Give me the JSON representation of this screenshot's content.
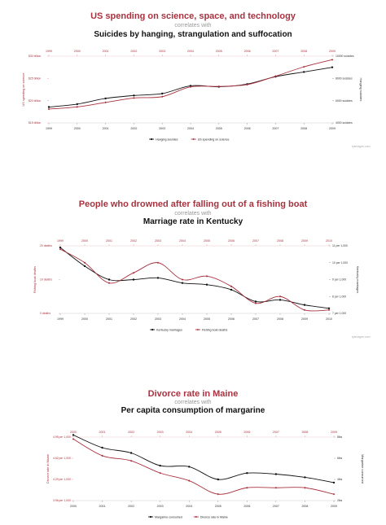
{
  "chart_data": [
    {
      "type": "line",
      "title": "US spending on science, space, and technology",
      "correlates_label": "correlates with",
      "subtitle": "Suicides by hanging, strangulation and suffocation",
      "x": [
        "1999",
        "2000",
        "2001",
        "2002",
        "2003",
        "2004",
        "2005",
        "2006",
        "2007",
        "2008",
        "2009"
      ],
      "left_axis": {
        "label": "US spending on science",
        "ticks": [
          "$15 billion",
          "$20 billion",
          "$25 billion",
          "$30 billion"
        ],
        "range": [
          15,
          30
        ]
      },
      "right_axis": {
        "label": "Hanging suicides",
        "ticks": [
          "4000 suicides",
          "6000 suicides",
          "8000 suicides",
          "10000 suicides"
        ],
        "range": [
          4000,
          10000
        ]
      },
      "series": [
        {
          "name": "Hanging suicides",
          "axis": "right",
          "color": "#111111",
          "marker": "dot",
          "values": [
            5427,
            5688,
            6198,
            6462,
            6635,
            7336,
            7248,
            7491,
            8161,
            8578,
            9000
          ]
        },
        {
          "name": "US spending on science",
          "axis": "left",
          "color": "#a8323f",
          "marker": "diamond",
          "values": [
            18.1,
            18.6,
            19.6,
            20.6,
            20.9,
            23.1,
            23.2,
            23.6,
            25.5,
            27.6,
            29.2
          ]
        }
      ],
      "legend_position": "bottom",
      "credit": "tylervigen.com"
    },
    {
      "type": "line",
      "title": "People who drowned after falling out of a fishing boat",
      "correlates_label": "correlates with",
      "subtitle": "Marriage rate in Kentucky",
      "x": [
        "1999",
        "2000",
        "2001",
        "2002",
        "2003",
        "2004",
        "2005",
        "2006",
        "2007",
        "2008",
        "2009",
        "2010"
      ],
      "left_axis": {
        "label": "Fishing boat deaths",
        "ticks": [
          "0 deaths",
          "10 deaths",
          "20 deaths"
        ],
        "range": [
          0,
          20
        ]
      },
      "right_axis": {
        "label": "Kentucky marriages",
        "ticks": [
          "7 per 1,000",
          "8 per 1,000",
          "9 per 1,000",
          "10 per 1,000",
          "11 per 1,000"
        ],
        "range": [
          7,
          11
        ]
      },
      "series": [
        {
          "name": "Kentucky marriages",
          "axis": "right",
          "color": "#111111",
          "marker": "dot",
          "values": [
            10.9,
            9.8,
            9.0,
            9.0,
            9.1,
            8.8,
            8.7,
            8.4,
            7.7,
            7.8,
            7.5,
            7.3
          ]
        },
        {
          "name": "Fishing boat deaths",
          "axis": "left",
          "color": "#a8323f",
          "marker": "diamond",
          "values": [
            19,
            15,
            9,
            12,
            15,
            10,
            11,
            8,
            3,
            5,
            1,
            1
          ]
        }
      ],
      "legend_position": "bottom",
      "credit": "tylervigen.com"
    },
    {
      "type": "line",
      "title": "Divorce rate in Maine",
      "correlates_label": "correlates with",
      "subtitle": "Per capita consumption of margarine",
      "x": [
        "2000",
        "2001",
        "2002",
        "2003",
        "2004",
        "2005",
        "2006",
        "2007",
        "2008",
        "2009"
      ],
      "left_axis": {
        "label": "Divorce rate in Maine",
        "ticks": [
          "3.96 per 1,000",
          "4.29 per 1,000",
          "4.62 per 1,000",
          "4.95 per 1,000"
        ],
        "range": [
          3.96,
          4.95
        ]
      },
      "right_axis": {
        "label": "Margarine consumed",
        "ticks": [
          "2lbs",
          "4lbs",
          "6lbs",
          "8lbs"
        ],
        "range": [
          2,
          8
        ]
      },
      "series": [
        {
          "name": "Margarine consumed",
          "axis": "right",
          "color": "#111111",
          "marker": "dot",
          "values": [
            8.2,
            7.0,
            6.5,
            5.3,
            5.2,
            4.0,
            4.6,
            4.5,
            4.2,
            3.7
          ]
        },
        {
          "name": "Divorce rate in Maine",
          "axis": "left",
          "color": "#a8323f",
          "marker": "diamond",
          "values": [
            4.92,
            4.66,
            4.58,
            4.39,
            4.27,
            4.06,
            4.16,
            4.16,
            4.16,
            4.06
          ]
        }
      ],
      "legend_position": "bottom",
      "credit": ""
    }
  ]
}
